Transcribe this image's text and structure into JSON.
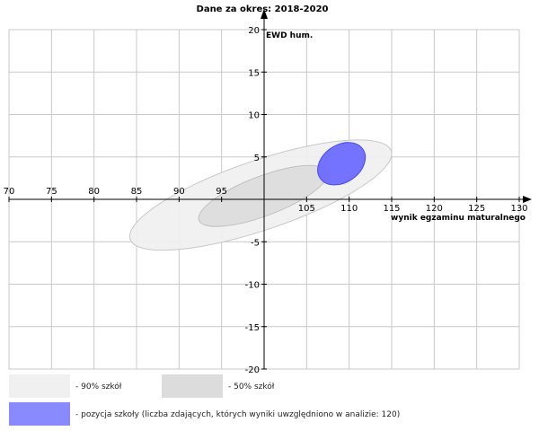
{
  "chart_data": {
    "type": "scatter",
    "title": "Dane za okres: 2018-2020",
    "xlabel": "wynik egzaminu maturalnego",
    "ylabel": "EWD hum.",
    "xlim": [
      70,
      130
    ],
    "ylim": [
      -20,
      20
    ],
    "xticks": [
      70,
      75,
      80,
      85,
      90,
      95,
      105,
      110,
      115,
      120,
      125,
      130
    ],
    "yticks": [
      20,
      15,
      10,
      5,
      -5,
      -10,
      -15,
      -20
    ],
    "grid": true,
    "series": [
      {
        "name": "- 90% szkół",
        "shape": "ellipse",
        "center": [
          99.6,
          0.5
        ],
        "x_extent": [
          84.2,
          115.0
        ],
        "y_extent": [
          -6.0,
          7.0
        ],
        "color": "#f0f0f0",
        "edge": "#c8c8c8"
      },
      {
        "name": "- 50% szkół",
        "shape": "ellipse",
        "center": [
          99.9,
          0.4
        ],
        "x_extent": [
          92.3,
          107.5
        ],
        "y_extent": [
          -3.2,
          4.0
        ],
        "color": "#dcdcdc",
        "edge": "#c0c0c0"
      },
      {
        "name": "- pozycja szkoły (liczba zdających, których wyniki uwzględniono w analizie: 120)",
        "shape": "ellipse",
        "center": [
          109.1,
          4.2
        ],
        "x_extent": [
          106.3,
          111.9
        ],
        "y_extent": [
          1.7,
          6.7
        ],
        "color": "#6b6bff",
        "edge": "#4a4af0"
      }
    ]
  }
}
